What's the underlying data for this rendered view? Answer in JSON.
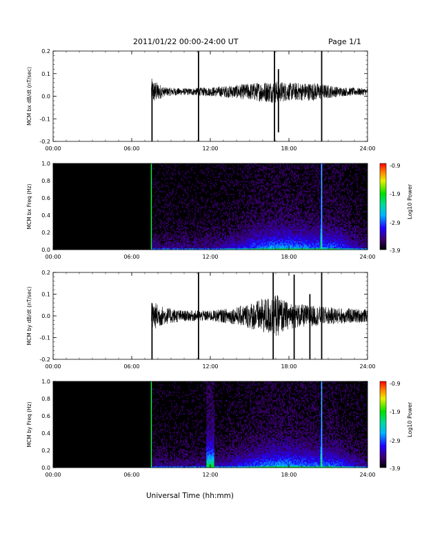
{
  "header": {
    "title": "2011/01/22  00:00-24:00 UT",
    "page": "Page 1/1"
  },
  "x_axis_label": "Universal Time (hh:mm)",
  "x_tick_labels": [
    "00:00",
    "06:00",
    "12:00",
    "18:00",
    "24:00"
  ],
  "colors": {
    "spectrogram_background": "#000000",
    "waveform_line": "#000000",
    "colorbar_top": "#ff0000",
    "colorbar_bottom": "#000000"
  },
  "chart_data": [
    {
      "id": "bx-waveform",
      "type": "line",
      "ylabel": "MCM bx dB/dt (nT/sec)",
      "xlim": [
        0,
        24
      ],
      "ylim": [
        -0.2,
        0.2
      ],
      "yticks": [
        "0.2",
        "0.1",
        "0.0",
        "-0.1",
        "-0.2"
      ],
      "data_start_hour": 7.5,
      "baseline": 0.02,
      "envelope": {
        "hours": [
          7.5,
          8.5,
          10,
          12,
          14,
          16,
          17,
          18,
          20,
          22,
          24
        ],
        "amplitude": [
          0.06,
          0.02,
          0.015,
          0.02,
          0.03,
          0.045,
          0.05,
          0.04,
          0.04,
          0.02,
          0.015
        ]
      },
      "spikes": [
        {
          "hour": 7.55,
          "min": -0.2,
          "max": 0.05
        },
        {
          "hour": 11.1,
          "min": -0.2,
          "max": 0.2
        },
        {
          "hour": 16.9,
          "min": -0.2,
          "max": 0.2
        },
        {
          "hour": 20.5,
          "min": -0.2,
          "max": 0.2
        },
        {
          "hour": 17.2,
          "min": -0.16,
          "max": 0.12
        }
      ]
    },
    {
      "id": "bx-spectrogram",
      "type": "heatmap",
      "ylabel": "MCM bx Freq (Hz)",
      "xlim": [
        0,
        24
      ],
      "ylim": [
        0.0,
        1.0
      ],
      "yticks": [
        "1.0",
        "0.8",
        "0.6",
        "0.4",
        "0.2",
        "0.0"
      ],
      "data_start_hour": 7.5,
      "power_range": [
        -3.9,
        -0.9
      ],
      "colorbar_label": "Log10 Power",
      "colorbar_ticks": [
        "-0.9",
        "-1.9",
        "-2.9",
        "-3.9"
      ],
      "vertical_lines": [
        {
          "hour": 7.5,
          "color": "#00ff40"
        },
        {
          "hour": 20.5,
          "color": "#20c8ff"
        }
      ]
    },
    {
      "id": "by-waveform",
      "type": "line",
      "ylabel": "MCM by dB/dt (nT/sec)",
      "xlim": [
        0,
        24
      ],
      "ylim": [
        -0.2,
        0.2
      ],
      "yticks": [
        "0.2",
        "0.1",
        "0.0",
        "-0.1",
        "-0.2"
      ],
      "data_start_hour": 7.5,
      "baseline": 0.0,
      "envelope": {
        "hours": [
          7.5,
          8.5,
          10,
          12,
          14,
          15.5,
          17,
          18,
          19.5,
          21,
          24
        ],
        "amplitude": [
          0.07,
          0.04,
          0.025,
          0.025,
          0.04,
          0.07,
          0.1,
          0.06,
          0.05,
          0.04,
          0.03
        ]
      },
      "spikes": [
        {
          "hour": 7.55,
          "min": -0.2,
          "max": 0.05
        },
        {
          "hour": 11.1,
          "min": -0.2,
          "max": 0.2
        },
        {
          "hour": 16.8,
          "min": -0.2,
          "max": 0.2
        },
        {
          "hour": 18.4,
          "min": -0.2,
          "max": 0.19
        },
        {
          "hour": 19.6,
          "min": -0.2,
          "max": 0.1
        },
        {
          "hour": 20.5,
          "min": -0.2,
          "max": 0.2
        }
      ]
    },
    {
      "id": "by-spectrogram",
      "type": "heatmap",
      "ylabel": "MCM by Freq (Hz)",
      "xlim": [
        0,
        24
      ],
      "ylim": [
        0.0,
        1.0
      ],
      "yticks": [
        "1.0",
        "0.8",
        "0.6",
        "0.4",
        "0.2",
        "0.0"
      ],
      "data_start_hour": 7.5,
      "power_range": [
        -3.9,
        -0.9
      ],
      "colorbar_label": "Log10 Power",
      "colorbar_ticks": [
        "-0.9",
        "-1.9",
        "-2.9",
        "-3.9"
      ],
      "vertical_lines": [
        {
          "hour": 7.5,
          "color": "#00ff40"
        },
        {
          "hour": 20.5,
          "color": "#20c8ff"
        }
      ]
    }
  ]
}
